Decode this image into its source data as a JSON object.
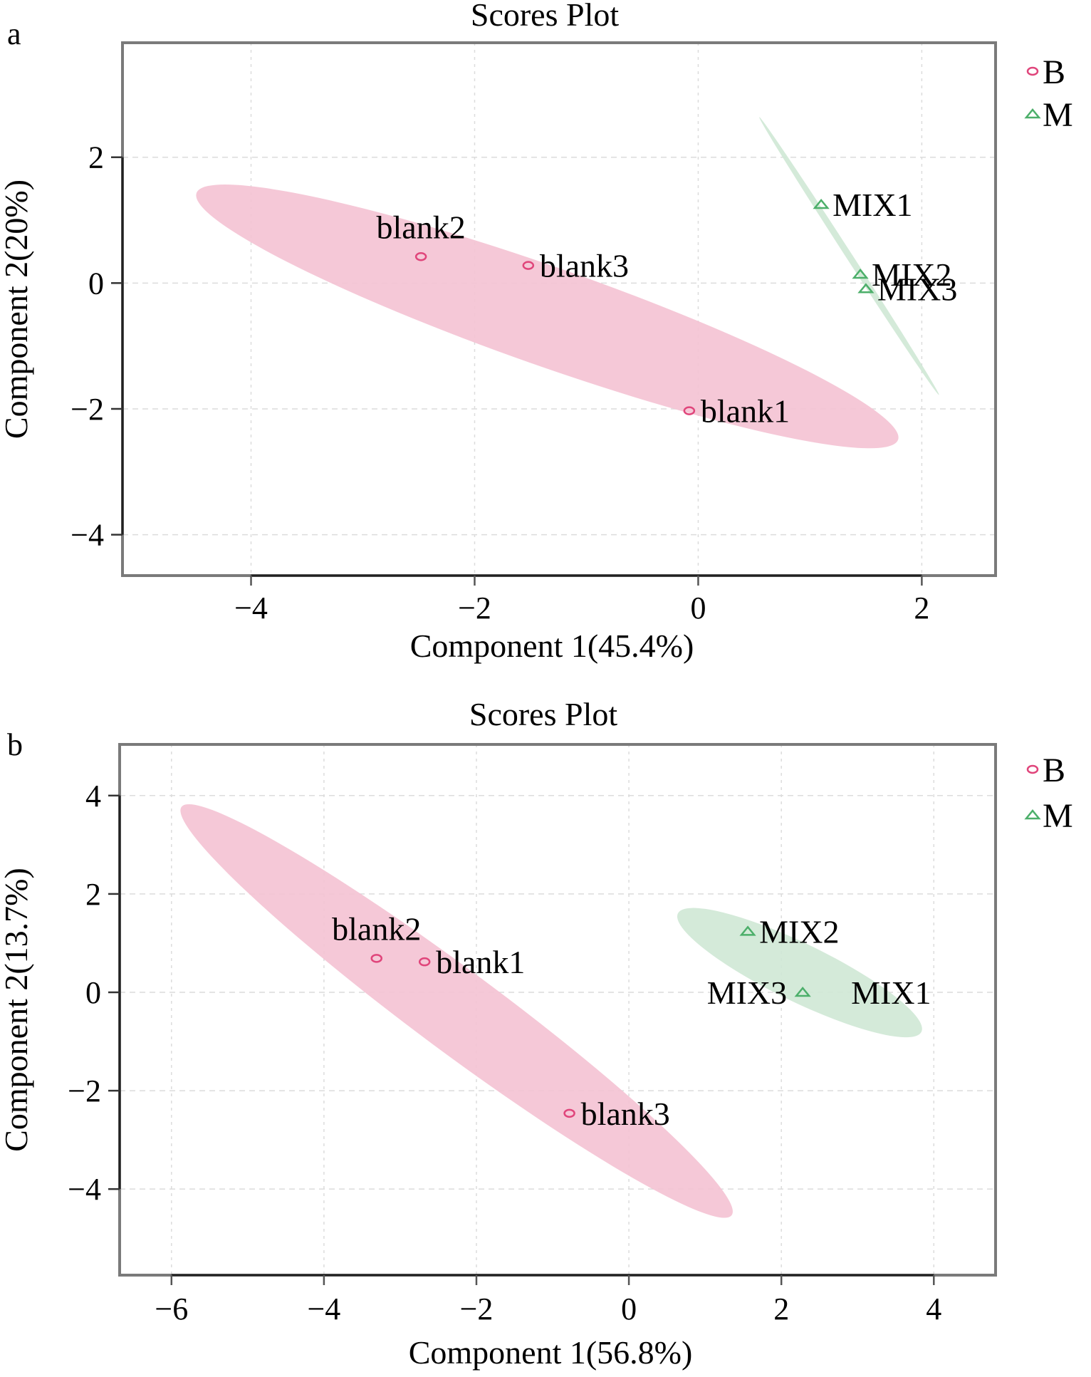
{
  "chart_data": [
    {
      "panel": "a",
      "type": "scatter",
      "title": "Scores Plot",
      "xlabel": "Component 1(45.4%)",
      "ylabel": "Component 2(20%)",
      "xlim": [
        -5.15,
        2.66
      ],
      "ylim": [
        -4.65,
        3.82
      ],
      "xticks": [
        -4,
        -2,
        0,
        2
      ],
      "xtick_labels": [
        "−4",
        "−2",
        "0",
        "2"
      ],
      "yticks": [
        -4,
        -2,
        0,
        2
      ],
      "ytick_labels": [
        "−4",
        "−2",
        "0",
        "2"
      ],
      "grid": true,
      "legend": {
        "position": "right-top",
        "entries": [
          {
            "label": "B",
            "marker": "circle"
          },
          {
            "label": "M",
            "marker": "triangle"
          }
        ]
      },
      "series": [
        {
          "name": "B",
          "marker": "circle",
          "color": "#e0457b",
          "ellipse_color": "#f4c2d3",
          "points": [
            {
              "label": "blank2",
              "x": -2.48,
              "y": 0.42,
              "label_pos": "above"
            },
            {
              "label": "blank3",
              "x": -1.52,
              "y": 0.28,
              "label_pos": "right"
            },
            {
              "label": "blank1",
              "x": -0.08,
              "y": -2.03,
              "label_pos": "right"
            }
          ],
          "ellipse": {
            "cx": -1.35,
            "cy": -0.53,
            "semi_major": 3.7,
            "semi_minor": 0.62,
            "angle_deg": -32
          }
        },
        {
          "name": "M",
          "marker": "triangle",
          "color": "#4caf6a",
          "ellipse_color": "#cfe8d5",
          "points": [
            {
              "label": "MIX1",
              "x": 1.1,
              "y": 1.25,
              "label_pos": "right"
            },
            {
              "label": "MIX2",
              "x": 1.45,
              "y": 0.14,
              "label_pos": "right"
            },
            {
              "label": "MIX3",
              "x": 1.5,
              "y": -0.09,
              "label_pos": "right"
            }
          ],
          "ellipse": {
            "cx": 1.35,
            "cy": 0.43,
            "semi_major": 2.35,
            "semi_minor": 0.03,
            "angle_deg": -70
          }
        }
      ]
    },
    {
      "panel": "b",
      "type": "scatter",
      "title": "Scores Plot",
      "xlabel": "Component 1(56.8%)",
      "ylabel": "Component 2(13.7%)",
      "xlim": [
        -6.68,
        4.81
      ],
      "ylim": [
        -5.75,
        5.04
      ],
      "xticks": [
        -6,
        -4,
        -2,
        0,
        2,
        4
      ],
      "xtick_labels": [
        "−6",
        "−4",
        "−2",
        "0",
        "2",
        "4"
      ],
      "yticks": [
        -4,
        -2,
        0,
        2,
        4
      ],
      "ytick_labels": [
        "−4",
        "−2",
        "0",
        "2",
        "4"
      ],
      "grid": true,
      "legend": {
        "position": "right-top",
        "entries": [
          {
            "label": "B",
            "marker": "circle"
          },
          {
            "label": "M",
            "marker": "triangle"
          }
        ]
      },
      "series": [
        {
          "name": "B",
          "marker": "circle",
          "color": "#e0457b",
          "ellipse_color": "#f4c2d3",
          "points": [
            {
              "label": "blank2",
              "x": -3.31,
              "y": 0.69,
              "label_pos": "above"
            },
            {
              "label": "blank1",
              "x": -2.68,
              "y": 0.62,
              "label_pos": "right"
            },
            {
              "label": "blank3",
              "x": -0.78,
              "y": -2.46,
              "label_pos": "right"
            }
          ],
          "ellipse": {
            "cx": -2.26,
            "cy": -0.38,
            "semi_major": 5.5,
            "semi_minor": 0.62,
            "angle_deg": -49
          }
        },
        {
          "name": "M",
          "marker": "triangle",
          "color": "#4caf6a",
          "ellipse_color": "#cfe8d5",
          "points": [
            {
              "label": "MIX2",
              "x": 1.56,
              "y": 1.24,
              "label_pos": "right"
            },
            {
              "label": "MIX3",
              "x": 2.28,
              "y": 0.0,
              "label_pos": "left"
            },
            {
              "label": "MIX1",
              "x": 2.28,
              "y": 0.0,
              "label_pos": "far-right"
            }
          ],
          "ellipse": {
            "cx": 2.24,
            "cy": 0.4,
            "semi_major": 2.0,
            "semi_minor": 0.48,
            "angle_deg": -37
          }
        }
      ]
    }
  ]
}
